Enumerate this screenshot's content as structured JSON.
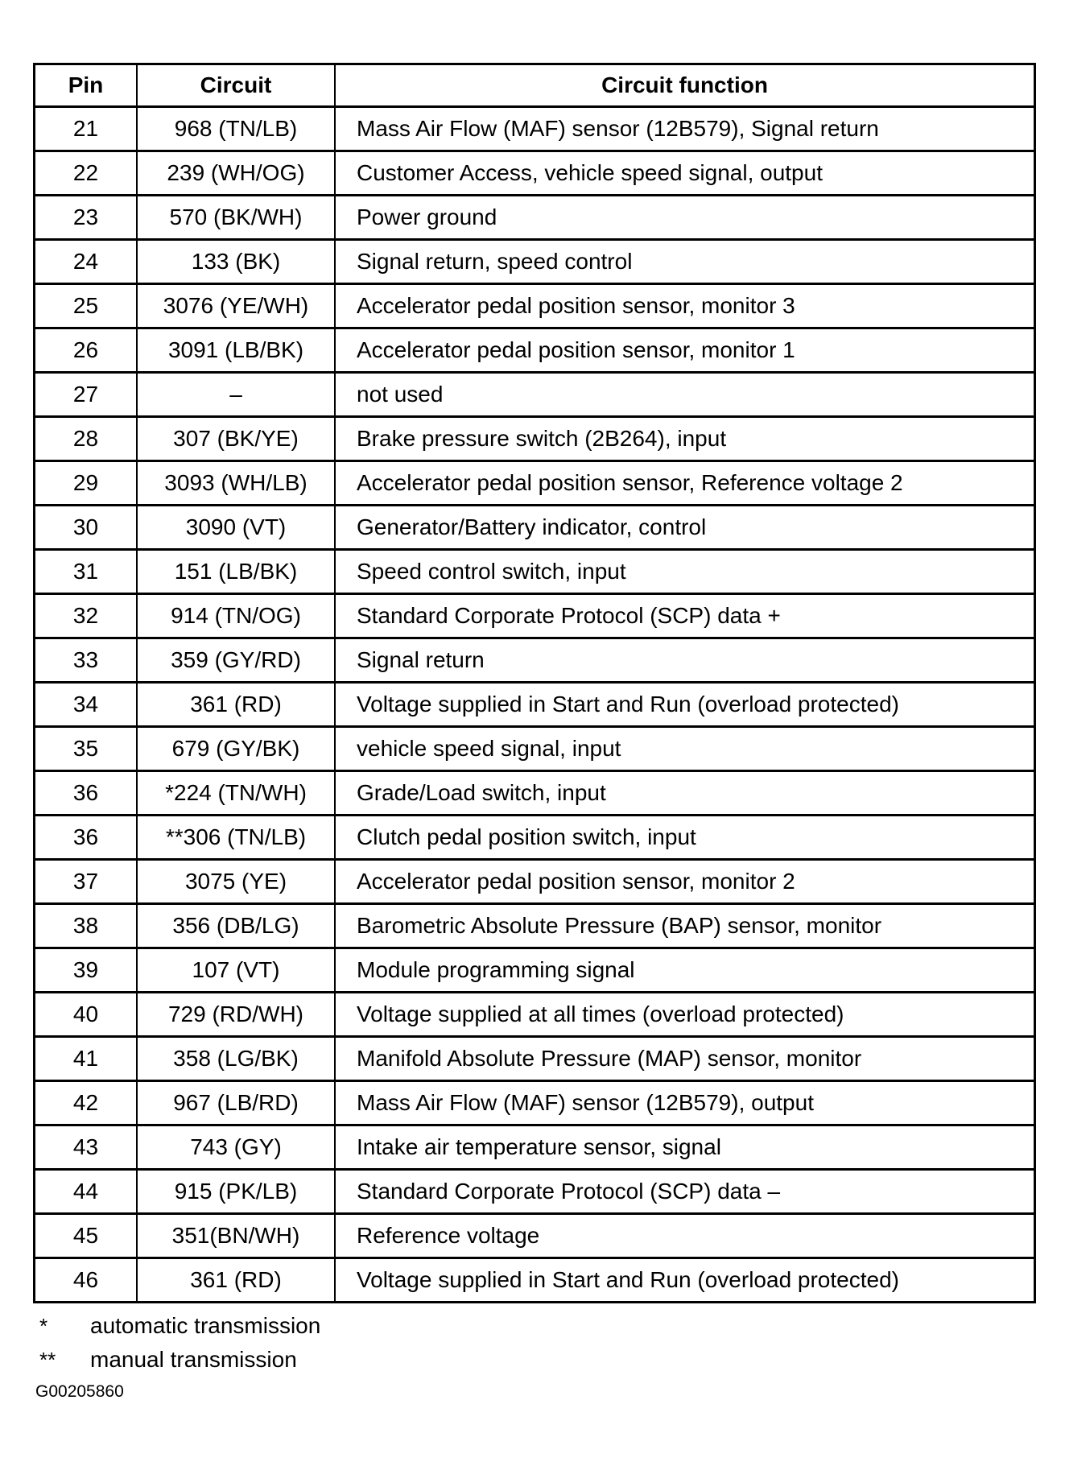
{
  "table": {
    "headers": {
      "pin": "Pin",
      "circuit": "Circuit",
      "function": "Circuit function"
    },
    "rows": [
      {
        "pin": "21",
        "circuit": "968 (TN/LB)",
        "function": "Mass Air Flow (MAF) sensor (12B579), Signal return"
      },
      {
        "pin": "22",
        "circuit": "239 (WH/OG)",
        "function": "Customer Access, vehicle speed signal, output"
      },
      {
        "pin": "23",
        "circuit": "570 (BK/WH)",
        "function": "Power ground"
      },
      {
        "pin": "24",
        "circuit": "133 (BK)",
        "function": "Signal return, speed control"
      },
      {
        "pin": "25",
        "circuit": "3076 (YE/WH)",
        "function": "Accelerator pedal position sensor, monitor 3"
      },
      {
        "pin": "26",
        "circuit": "3091 (LB/BK)",
        "function": "Accelerator pedal position sensor, monitor 1"
      },
      {
        "pin": "27",
        "circuit": "–",
        "function": "not used"
      },
      {
        "pin": "28",
        "circuit": "307 (BK/YE)",
        "function": "Brake pressure switch (2B264), input"
      },
      {
        "pin": "29",
        "circuit": "3093 (WH/LB)",
        "function": "Accelerator pedal position sensor, Reference voltage 2"
      },
      {
        "pin": "30",
        "circuit": "3090 (VT)",
        "function": "Generator/Battery indicator, control"
      },
      {
        "pin": "31",
        "circuit": "151 (LB/BK)",
        "function": "Speed control switch, input"
      },
      {
        "pin": "32",
        "circuit": "914 (TN/OG)",
        "function": "Standard Corporate Protocol (SCP) data +"
      },
      {
        "pin": "33",
        "circuit": "359 (GY/RD)",
        "function": "Signal return"
      },
      {
        "pin": "34",
        "circuit": "361 (RD)",
        "function": "Voltage supplied in Start and Run (overload protected)"
      },
      {
        "pin": "35",
        "circuit": "679 (GY/BK)",
        "function": "vehicle speed signal, input"
      },
      {
        "pin": "36",
        "circuit": "*224 (TN/WH)",
        "function": "Grade/Load switch, input"
      },
      {
        "pin": "36",
        "circuit": "**306 (TN/LB)",
        "function": "Clutch pedal position switch, input"
      },
      {
        "pin": "37",
        "circuit": "3075 (YE)",
        "function": "Accelerator pedal position sensor, monitor 2"
      },
      {
        "pin": "38",
        "circuit": "356 (DB/LG)",
        "function": "Barometric Absolute Pressure (BAP) sensor, monitor"
      },
      {
        "pin": "39",
        "circuit": "107 (VT)",
        "function": "Module programming signal"
      },
      {
        "pin": "40",
        "circuit": "729 (RD/WH)",
        "function": "Voltage supplied at all times (overload protected)"
      },
      {
        "pin": "41",
        "circuit": "358 (LG/BK)",
        "function": "Manifold Absolute Pressure (MAP) sensor, monitor"
      },
      {
        "pin": "42",
        "circuit": "967 (LB/RD)",
        "function": "Mass Air Flow (MAF) sensor (12B579), output"
      },
      {
        "pin": "43",
        "circuit": "743 (GY)",
        "function": "Intake air temperature sensor, signal"
      },
      {
        "pin": "44",
        "circuit": "915 (PK/LB)",
        "function": "Standard Corporate Protocol (SCP) data –"
      },
      {
        "pin": "45",
        "circuit": "351(BN/WH)",
        "function": "Reference voltage"
      },
      {
        "pin": "46",
        "circuit": "361 (RD)",
        "function": "Voltage supplied in Start and Run (overload protected)"
      }
    ]
  },
  "footnotes": [
    {
      "mark": "*",
      "text": "automatic transmission"
    },
    {
      "mark": "**",
      "text": "manual transmission"
    }
  ],
  "figure_code": "G00205860"
}
